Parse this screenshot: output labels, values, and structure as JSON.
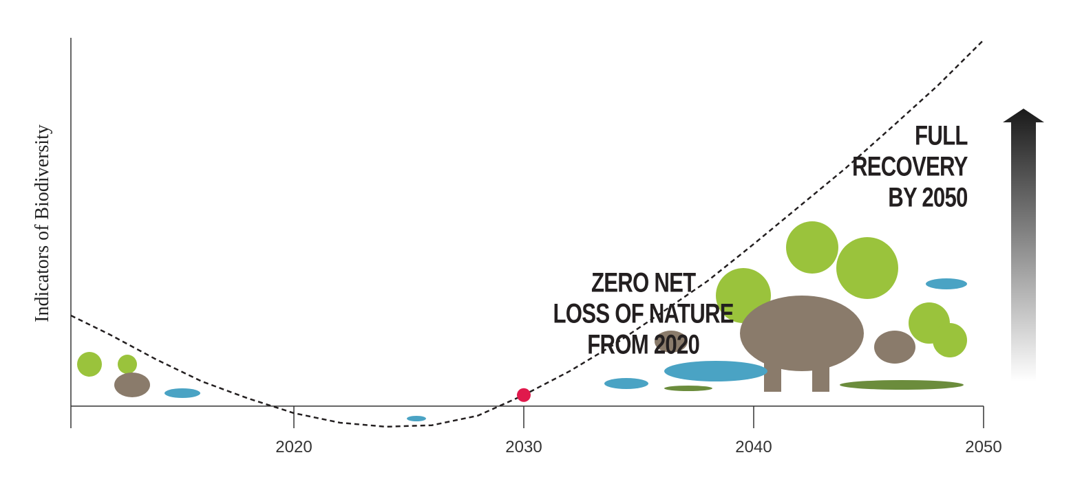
{
  "chart_data": {
    "type": "line",
    "y_label": "Indicators of Biodiversity",
    "x": [
      2010.3,
      2012,
      2014,
      2016,
      2018,
      2020,
      2022,
      2024,
      2026,
      2028,
      2030,
      2032,
      2034,
      2036,
      2038,
      2040,
      2042,
      2044,
      2046,
      2048,
      2050
    ],
    "series": [
      {
        "color": "#231f20",
        "values": [
          24.6,
          19.4,
          12.7,
          6.7,
          2.1,
          -1.9,
          -4.5,
          -5.6,
          -5.2,
          -2.6,
          3.0,
          9.5,
          17,
          25.4,
          34,
          44,
          54.3,
          64.6,
          75.7,
          87,
          99.4
        ]
      }
    ],
    "marker": {
      "x": 2030,
      "y": 3.0,
      "color": "#e0194c"
    },
    "xlim": [
      2010.3,
      2050
    ],
    "ylim": [
      -6,
      100
    ],
    "xticks": [
      2020,
      2030,
      2040,
      2050
    ],
    "annotations": [
      {
        "lines": [
          "ZERO NET",
          "LOSS OF NATURE",
          "FROM 2020"
        ],
        "x": 2035.2,
        "y": 31
      },
      {
        "lines": [
          "FULL",
          "RECOVERY",
          "BY 2050"
        ],
        "x": 2049.3,
        "y": 71
      }
    ]
  }
}
